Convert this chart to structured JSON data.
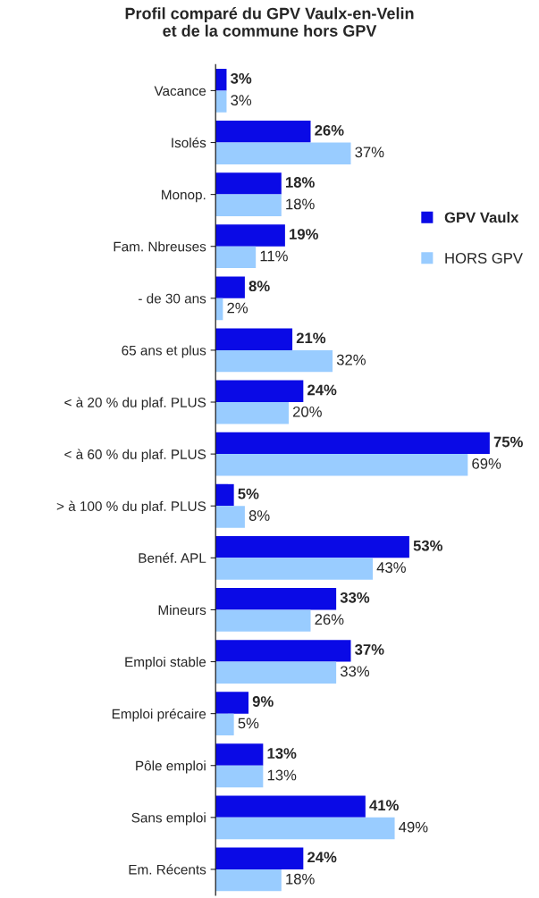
{
  "chart_data": {
    "type": "bar",
    "orientation": "horizontal",
    "title": "Profil comparé du GPV Vaulx-en-Velin\net de la commune hors GPV",
    "categories": [
      "Vacance",
      "Isolés",
      "Monop.",
      "Fam. Nbreuses",
      "- de 30 ans",
      "65 ans et plus",
      "< à 20 % du plaf. PLUS",
      "< à 60 % du plaf. PLUS",
      "> à 100 % du plaf. PLUS",
      "Benéf. APL",
      "Mineurs",
      "Emploi stable",
      "Emploi précaire",
      "Pôle emploi",
      "Sans emploi",
      "Em. Récents"
    ],
    "series": [
      {
        "name": "GPV Vaulx",
        "color": "#0a0ae6",
        "values": [
          3,
          26,
          18,
          19,
          8,
          21,
          24,
          75,
          5,
          53,
          33,
          37,
          9,
          13,
          41,
          24
        ],
        "value_labels": [
          "3%",
          "26%",
          "18%",
          "19%",
          "8%",
          "21%",
          "24%",
          "75%",
          "5%",
          "53%",
          "33%",
          "37%",
          "9%",
          "13%",
          "41%",
          "24%"
        ]
      },
      {
        "name": "HORS GPV",
        "color": "#99ccff",
        "values": [
          3,
          37,
          18,
          11,
          2,
          32,
          20,
          69,
          8,
          43,
          26,
          33,
          5,
          13,
          49,
          18
        ],
        "value_labels": [
          "3%",
          "37%",
          "18%",
          "11%",
          "2%",
          "32%",
          "20%",
          "69%",
          "8%",
          "43%",
          "26%",
          "33%",
          "5%",
          "13%",
          "49%",
          "18%"
        ]
      }
    ],
    "legend": "right",
    "grid": false
  }
}
